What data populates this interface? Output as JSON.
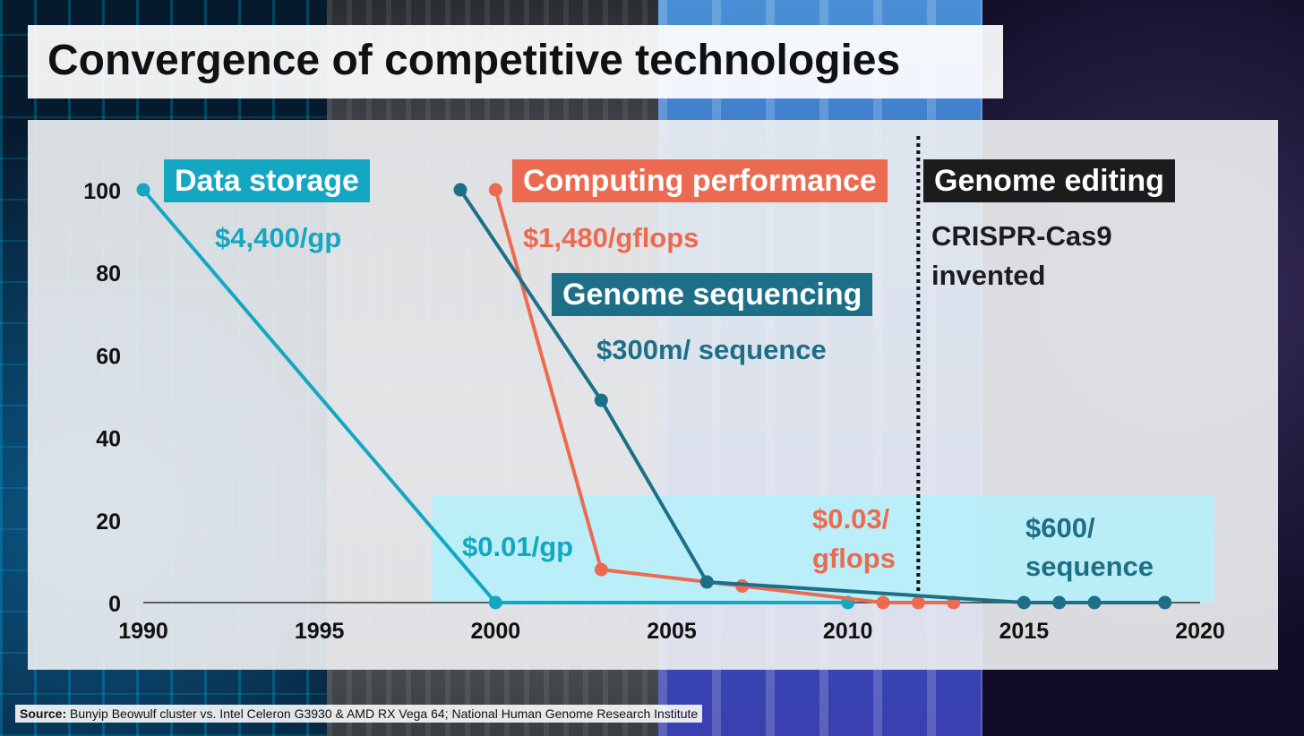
{
  "title": "Convergence of competitive technologies",
  "source": {
    "label": "Source:",
    "text": "Bunyip Beowulf cluster vs. Intel Celeron G3930 & AMD RX Vega 64; National Human Genome Research Institute"
  },
  "colors": {
    "storage": "#14a7c2",
    "computing": "#ec6a50",
    "sequencing": "#1d6e87",
    "editing": "#1c1c1c",
    "highlight": "#b6f0fa"
  },
  "annotations": {
    "storage_box": "Data storage",
    "storage_start": "$4,400/gp",
    "storage_end": "$0.01/gp",
    "computing_box": "Computing performance",
    "computing_start": "$1,480/gflops",
    "computing_end_1": "$0.03/",
    "computing_end_2": "gflops",
    "sequencing_box": "Genome sequencing",
    "sequencing_start": "$300m/ sequence",
    "sequencing_end_1": "$600/",
    "sequencing_end_2": "sequence",
    "editing_box": "Genome editing",
    "editing_text_1": "CRISPR-Cas9",
    "editing_text_2": "invented"
  },
  "chart_data": {
    "type": "line",
    "title": "Convergence of competitive technologies",
    "xlabel": "",
    "ylabel": "",
    "xlim": [
      1990,
      2020
    ],
    "ylim": [
      0,
      100
    ],
    "x_ticks": [
      1990,
      1995,
      2000,
      2005,
      2010,
      2015,
      2020
    ],
    "y_ticks": [
      0,
      20,
      40,
      60,
      80,
      100
    ],
    "grid": false,
    "series": [
      {
        "name": "Data storage",
        "color_key": "storage",
        "points": [
          {
            "x": 1990,
            "y": 100
          },
          {
            "x": 2000,
            "y": 0
          },
          {
            "x": 2010,
            "y": 0
          }
        ]
      },
      {
        "name": "Computing performance",
        "color_key": "computing",
        "points": [
          {
            "x": 2000,
            "y": 100
          },
          {
            "x": 2003,
            "y": 8
          },
          {
            "x": 2007,
            "y": 4
          },
          {
            "x": 2011,
            "y": 0
          },
          {
            "x": 2012,
            "y": 0
          },
          {
            "x": 2013,
            "y": 0
          }
        ]
      },
      {
        "name": "Genome sequencing",
        "color_key": "sequencing",
        "points": [
          {
            "x": 1999,
            "y": 100
          },
          {
            "x": 2003,
            "y": 49
          },
          {
            "x": 2006,
            "y": 5
          },
          {
            "x": 2015,
            "y": 0
          },
          {
            "x": 2016,
            "y": 0
          },
          {
            "x": 2017,
            "y": 0
          },
          {
            "x": 2019,
            "y": 0
          }
        ]
      }
    ],
    "event_line": {
      "x": 2012,
      "label": "Genome editing"
    },
    "highlight_region": {
      "x_range": [
        1998.2,
        2020
      ],
      "y_range": [
        0,
        26
      ]
    }
  }
}
